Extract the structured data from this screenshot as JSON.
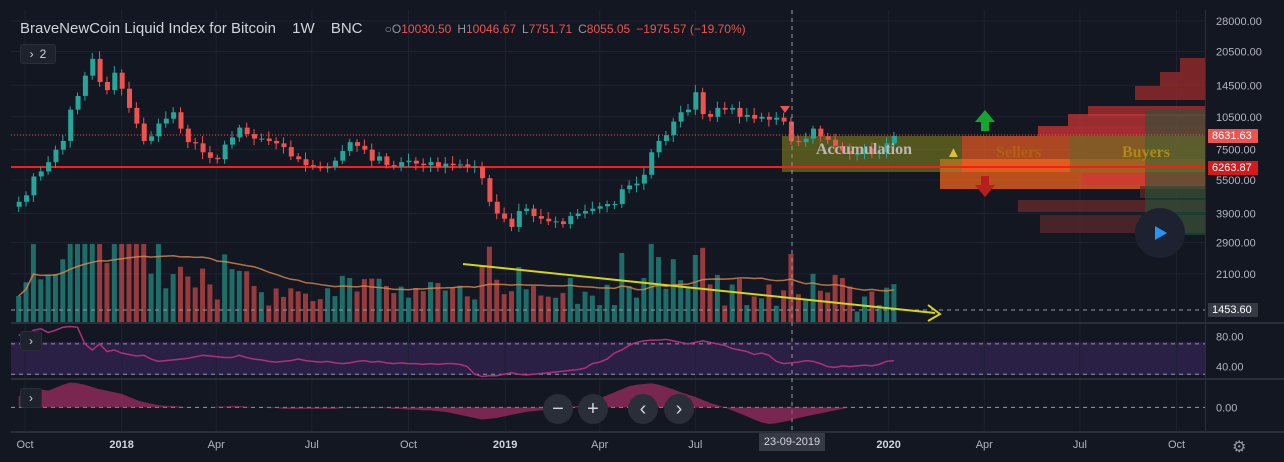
{
  "header": {
    "symbol": "BraveNewCoin Liquid Index for Bitcoin",
    "interval": "1W",
    "source": "BNC",
    "open_label": "O",
    "open": "10030.50",
    "high_label": "H",
    "high": "10046.67",
    "low_label": "L",
    "low": "7751.71",
    "close_label": "C",
    "close": "8055.05",
    "change": "−1975.57 (−19.70%)"
  },
  "controls": {
    "collapse_count": "2",
    "zoom_out": "−",
    "zoom_in": "+",
    "scroll_left": "‹",
    "scroll_right": "›"
  },
  "zones": {
    "accumulation": "Accumulation",
    "sellers": "Sellers",
    "buyers": "Buyers"
  },
  "price_tags": {
    "current": "8631.63",
    "support": "6263.87",
    "volume": "1453.60"
  },
  "crosshair_date": "23-09-2019",
  "colors": {
    "background": "#131722",
    "up": "#26a69a",
    "down": "#ef5350",
    "support_line": "#ff1a1a",
    "trend_line": "#d4d41a",
    "rsi_line": "#b0307a",
    "accumulation_zone": "#8b8a1e"
  },
  "chart_data": [
    {
      "type": "candlestick",
      "title": "BraveNewCoin Liquid Index for Bitcoin",
      "scale": "log",
      "y_ticks": [
        "28000.00",
        "20500.00",
        "14500.00",
        "10500.00",
        "7500.00",
        "5500.00",
        "3900.00",
        "2900.00",
        "2100.00"
      ],
      "y_tick_values": [
        28000,
        20500,
        14500,
        10500,
        7500,
        5500,
        3900,
        2900,
        2100
      ],
      "x_ticks": [
        "Oct",
        "2018",
        "Apr",
        "Jul",
        "Oct",
        "2019",
        "Apr",
        "Jul",
        "Oct",
        "2020",
        "Apr",
        "Jul",
        "Oct"
      ],
      "x_tick_dates": [
        "2017-10-01",
        "2018-01-01",
        "2018-04-01",
        "2018-07-01",
        "2018-10-01",
        "2019-01-01",
        "2019-04-01",
        "2019-07-01",
        "2019-10-01",
        "2020-01-01",
        "2020-04-01",
        "2020-07-01",
        "2020-10-01"
      ],
      "bold_ticks": [
        "2018",
        "2019",
        "2020"
      ],
      "weekly_closes_start": "2017-09-25",
      "weekly_closes": [
        4400,
        4700,
        5700,
        6000,
        6600,
        7500,
        8200,
        11300,
        13000,
        16000,
        19000,
        15000,
        13800,
        16500,
        14000,
        11500,
        9800,
        8200,
        8600,
        9800,
        10300,
        11000,
        9300,
        8100,
        8000,
        7300,
        6900,
        6800,
        7900,
        8500,
        9400,
        8800,
        8400,
        8400,
        8200,
        8000,
        7700,
        7000,
        6800,
        6400,
        6300,
        6200,
        6300,
        6700,
        7400,
        8100,
        7800,
        7500,
        6700,
        7000,
        6400,
        6300,
        6600,
        6700,
        6500,
        6400,
        6600,
        6300,
        6500,
        6400,
        6450,
        6300,
        6300,
        5600,
        4400,
        3900,
        3700,
        3400,
        4000,
        4100,
        3800,
        3700,
        3600,
        3600,
        3500,
        3800,
        3900,
        4000,
        4100,
        4200,
        4300,
        4300,
        5000,
        5200,
        5300,
        5800,
        7300,
        8200,
        8700,
        10000,
        11000,
        11300,
        13500,
        10800,
        10500,
        11500,
        11300,
        11500,
        10500,
        10700,
        10300,
        10500,
        10200,
        10400,
        10000,
        8200,
        8100,
        8400,
        9300,
        8600,
        8300,
        7800,
        7400,
        7200,
        7200,
        7600,
        7200,
        7300,
        8000,
        8631
      ],
      "volume_avg_label": "1453.60"
    },
    {
      "type": "line",
      "name": "RSI",
      "y_ticks": [
        "80.00",
        "40.00"
      ],
      "bands": [
        70,
        30
      ],
      "range": [
        25,
        95
      ],
      "values": [
        82,
        80,
        88,
        90,
        85,
        88,
        92,
        93,
        92,
        70,
        62,
        70,
        60,
        62,
        58,
        56,
        54,
        55,
        50,
        47,
        48,
        49,
        50,
        51,
        53,
        55,
        54,
        53,
        52,
        52,
        55,
        52,
        50,
        49,
        47,
        46,
        47,
        48,
        50,
        48,
        47,
        46,
        47,
        45,
        44,
        45,
        47,
        48,
        46,
        47,
        45,
        44,
        45,
        44,
        44,
        43,
        44,
        43,
        44,
        44,
        43,
        40,
        30,
        27,
        28,
        28,
        30,
        32,
        30,
        29,
        30,
        31,
        32,
        33,
        34,
        35,
        36,
        38,
        44,
        46,
        50,
        58,
        62,
        68,
        72,
        74,
        75,
        75,
        76,
        74,
        72,
        70,
        72,
        74,
        72,
        70,
        68,
        64,
        62,
        60,
        56,
        58,
        55,
        47,
        44,
        45,
        46,
        48,
        47,
        44,
        40,
        39,
        41,
        40,
        41,
        42,
        41,
        43,
        47,
        48
      ]
    },
    {
      "type": "area",
      "name": "Oscillator",
      "y_ticks": [
        "0.00"
      ],
      "range": [
        -30,
        35
      ],
      "values": [
        15,
        18,
        22,
        24,
        22,
        26,
        30,
        33,
        32,
        30,
        27,
        24,
        22,
        20,
        18,
        14,
        10,
        7,
        5,
        3,
        2,
        2,
        1,
        0,
        0,
        0,
        0,
        1,
        1,
        2,
        2,
        1,
        0,
        0,
        -1,
        -1,
        -2,
        -2,
        -2,
        -2,
        -2,
        -2,
        -2,
        -2,
        -1,
        -1,
        -1,
        -1,
        -1,
        -1,
        -1,
        -2,
        -2,
        -3,
        -3,
        -4,
        -4,
        -5,
        -6,
        -8,
        -10,
        -12,
        -14,
        -16,
        -15,
        -14,
        -12,
        -10,
        -8,
        -6,
        -5,
        -4,
        -3,
        -2,
        -1,
        0,
        2,
        5,
        8,
        12,
        16,
        20,
        24,
        28,
        30,
        31,
        32,
        30,
        27,
        24,
        20,
        17,
        14,
        10,
        6,
        3,
        0,
        -4,
        -8,
        -12,
        -16,
        -20,
        -22,
        -21,
        -19,
        -17,
        -14,
        -12,
        -10,
        -8,
        -6,
        -4,
        -2,
        0
      ]
    }
  ]
}
